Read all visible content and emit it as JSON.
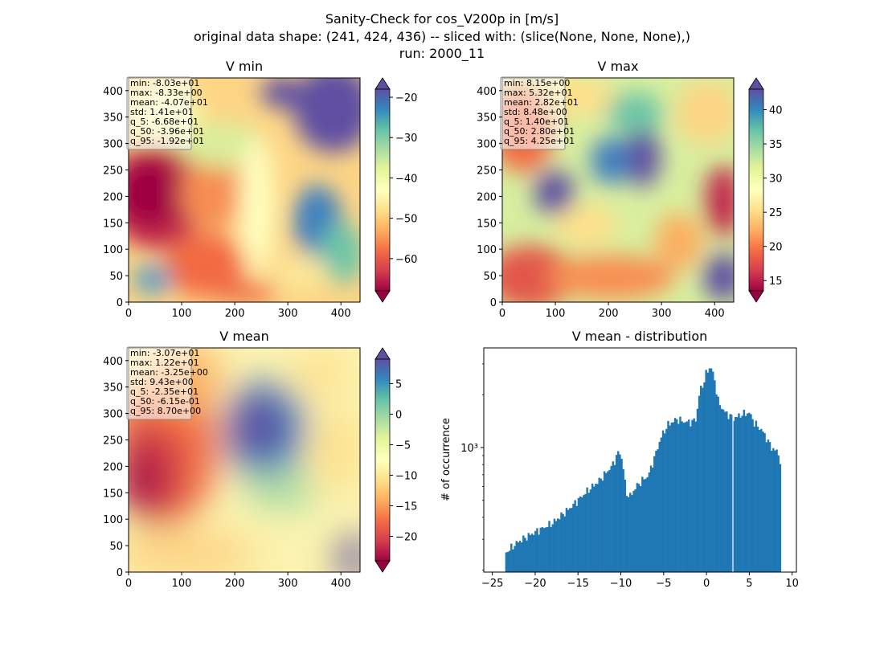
{
  "figure": {
    "title_lines": [
      "Sanity-Check for cos_V200p in [m/s]",
      "original data shape: (241, 424, 436) -- sliced with: (slice(None, None, None),)",
      "run: 2000_11"
    ]
  },
  "chart_data": [
    {
      "type": "heatmap",
      "title": "V min",
      "colormap": "Spectral",
      "x_ticks": [
        "0",
        "100",
        "200",
        "300",
        "400"
      ],
      "y_ticks": [
        "0",
        "50",
        "100",
        "150",
        "200",
        "250",
        "300",
        "350",
        "400"
      ],
      "xlim": [
        0,
        436
      ],
      "ylim": [
        0,
        424
      ],
      "colorbar": {
        "min": -68,
        "max": -18,
        "ticks": [
          "-60",
          "-50",
          "-40",
          "-30",
          "-20"
        ],
        "tick_values": [
          -60,
          -50,
          -40,
          -30,
          -20
        ],
        "extend": "both"
      },
      "stats": [
        "min: -8.03e+01",
        "max: -8.33e+00",
        "mean: -4.07e+01",
        "std: 1.41e+01",
        "q_5: -6.68e+01",
        "q_50: -3.96e+01",
        "q_95: -1.92e+01"
      ]
    },
    {
      "type": "heatmap",
      "title": "V max",
      "colormap": "Spectral",
      "x_ticks": [
        "0",
        "100",
        "200",
        "300",
        "400"
      ],
      "y_ticks": [
        "0",
        "50",
        "100",
        "150",
        "200",
        "250",
        "300",
        "350",
        "400"
      ],
      "xlim": [
        0,
        436
      ],
      "ylim": [
        0,
        424
      ],
      "colorbar": {
        "min": 13.5,
        "max": 43,
        "ticks": [
          "15",
          "20",
          "25",
          "30",
          "35",
          "40"
        ],
        "tick_values": [
          15,
          20,
          25,
          30,
          35,
          40
        ],
        "extend": "both"
      },
      "stats": [
        "min: 8.15e+00",
        "max: 5.32e+01",
        "mean: 2.82e+01",
        "std: 8.48e+00",
        "q_5: 1.40e+01",
        "q_50: 2.80e+01",
        "q_95: 4.25e+01"
      ]
    },
    {
      "type": "heatmap",
      "title": "V mean",
      "colormap": "Spectral",
      "x_ticks": [
        "0",
        "100",
        "200",
        "300",
        "400"
      ],
      "y_ticks": [
        "0",
        "50",
        "100",
        "150",
        "200",
        "250",
        "300",
        "350",
        "400"
      ],
      "xlim": [
        0,
        436
      ],
      "ylim": [
        0,
        424
      ],
      "colorbar": {
        "min": -24,
        "max": 9,
        "ticks": [
          "-20",
          "-15",
          "-10",
          "-5",
          "0",
          "5"
        ],
        "tick_values": [
          -20,
          -15,
          -10,
          -5,
          0,
          5
        ],
        "extend": "both"
      },
      "stats": [
        "min: -3.07e+01",
        "max: 1.22e+01",
        "mean: -3.25e+00",
        "std: 9.43e+00",
        "q_5: -2.35e+01",
        "q_50: -6.15e-01",
        "q_95: 8.70e+00"
      ]
    },
    {
      "type": "bar",
      "title": "V mean - distribution",
      "ylabel": "# of occurrence",
      "y_scale": "log",
      "y_tick_label": "10³",
      "y_tick_value": 1000,
      "color": "#1f77b4",
      "xlim": [
        -26,
        10.5
      ],
      "x_ticks": [
        "−25",
        "−20",
        "−15",
        "−10",
        "−5",
        "0",
        "5",
        "10"
      ],
      "x_tick_values": [
        -25,
        -20,
        -15,
        -10,
        -5,
        0,
        5,
        10
      ],
      "anchors": [
        [
          -23.5,
          250
        ],
        [
          -22,
          290
        ],
        [
          -20,
          330
        ],
        [
          -18,
          370
        ],
        [
          -16,
          450
        ],
        [
          -14,
          560
        ],
        [
          -12.5,
          650
        ],
        [
          -11,
          790
        ],
        [
          -10.2,
          960
        ],
        [
          -9.8,
          830
        ],
        [
          -9.4,
          560
        ],
        [
          -9,
          520
        ],
        [
          -8.2,
          600
        ],
        [
          -7.5,
          650
        ],
        [
          -6.8,
          690
        ],
        [
          -6,
          900
        ],
        [
          -5.3,
          1150
        ],
        [
          -4.5,
          1350
        ],
        [
          -3.5,
          1450
        ],
        [
          -2.5,
          1400
        ],
        [
          -1.7,
          1400
        ],
        [
          -1.2,
          1460
        ],
        [
          -0.8,
          2100
        ],
        [
          -0.3,
          2350
        ],
        [
          0,
          2700
        ],
        [
          0.5,
          2900
        ],
        [
          0.9,
          2500
        ],
        [
          1.4,
          1800
        ],
        [
          2.2,
          1580
        ],
        [
          3.2,
          1470
        ],
        [
          4.2,
          1550
        ],
        [
          5,
          1580
        ],
        [
          5.6,
          1380
        ],
        [
          6.5,
          1250
        ],
        [
          7.6,
          1000
        ],
        [
          8.4,
          930
        ],
        [
          8.7,
          770
        ]
      ]
    }
  ]
}
